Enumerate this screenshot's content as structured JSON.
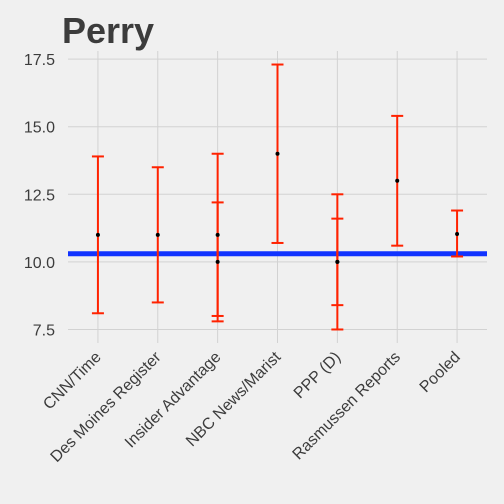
{
  "chart_data": {
    "type": "errorbar",
    "title": "Perry",
    "xlabel": "",
    "ylabel": "",
    "ylim": [
      7.0,
      17.8
    ],
    "yticks": [
      "7.5",
      "10.0",
      "12.5",
      "15.0",
      "17.5"
    ],
    "ytick_values": [
      7.5,
      10.0,
      12.5,
      15.0,
      17.5
    ],
    "grid": true,
    "categories": [
      "CNN/Time",
      "Des Moines Register",
      "Insider Advantage",
      "NBC News/Marist",
      "PPP (D)",
      "Rasmussen Reports",
      "Pooled"
    ],
    "points": [
      {
        "category": "CNN/Time",
        "value": 11.0,
        "low": 8.1,
        "high": 13.9
      },
      {
        "category": "Des Moines Register",
        "value": 11.0,
        "low": 8.5,
        "high": 13.5
      },
      {
        "category": "Insider Advantage",
        "value": 11.0,
        "low": 8.0,
        "high": 14.0
      },
      {
        "category": "Insider Advantage",
        "value": 10.0,
        "low": 7.8,
        "high": 12.2
      },
      {
        "category": "NBC News/Marist",
        "value": 14.0,
        "low": 10.7,
        "high": 17.3
      },
      {
        "category": "PPP (D)",
        "value": 10.0,
        "low": 7.5,
        "high": 12.5
      },
      {
        "category": "PPP (D)",
        "value": 10.0,
        "low": 8.4,
        "high": 11.6
      },
      {
        "category": "Rasmussen Reports",
        "value": 13.0,
        "low": 10.6,
        "high": 15.4
      },
      {
        "category": "Pooled",
        "value": 11.03,
        "low": 10.2,
        "high": 11.9
      }
    ],
    "reference_line": {
      "value": 10.3,
      "color": "#1133FF"
    },
    "colors": {
      "errorbar": "#FF2200",
      "point": "#000000",
      "grid": "#D2D2D2",
      "background": "#F0F0F0",
      "text": "#3C3C3C"
    }
  }
}
